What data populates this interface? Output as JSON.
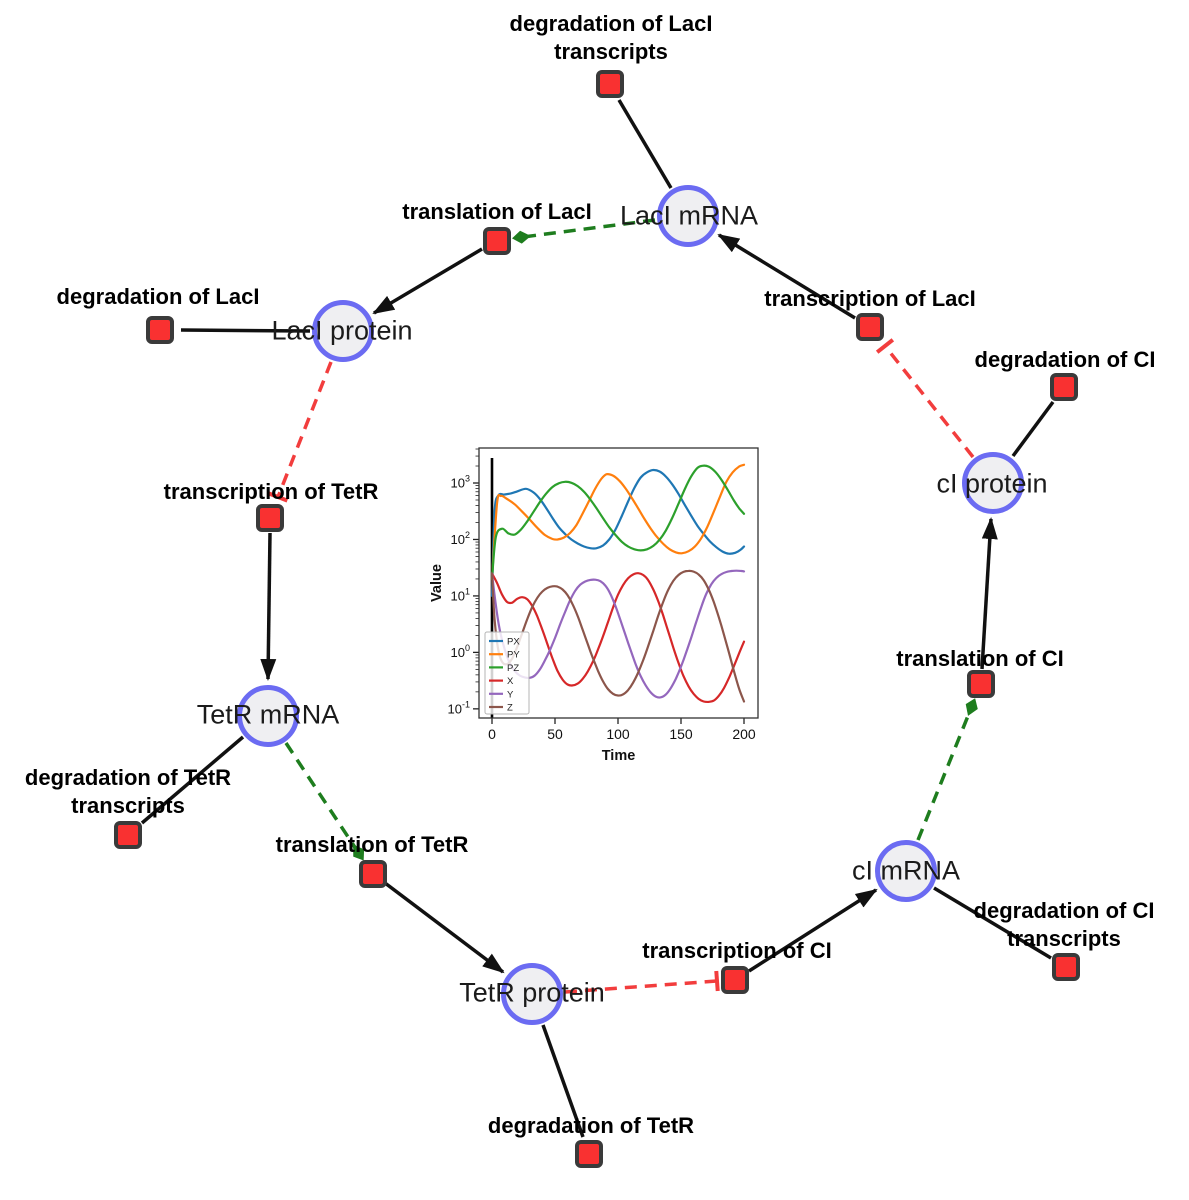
{
  "colors": {
    "species_fill": "#efeff2",
    "species_stroke": "#6b6bf2",
    "reaction_fill": "#f93131",
    "reaction_stroke": "#3a3a3a",
    "edge": "#111111",
    "catalysis": "#1e7d1e",
    "inhibition": "#f23d3d"
  },
  "network": {
    "species": [
      {
        "id": "laci-mrna",
        "label": "LacI mRNA"
      },
      {
        "id": "laci-protein",
        "label": "LacI protein"
      },
      {
        "id": "tetr-mrna",
        "label": "TetR mRNA"
      },
      {
        "id": "tetr-protein",
        "label": "TetR protein"
      },
      {
        "id": "ci-mrna",
        "label": "cI mRNA"
      },
      {
        "id": "ci-protein",
        "label": "cI protein"
      }
    ],
    "reactions": [
      {
        "id": "degradation-of-laci-transcripts",
        "lines": [
          "degradation of LacI",
          "transcripts"
        ]
      },
      {
        "id": "translation-of-laci",
        "lines": [
          "translation of LacI"
        ]
      },
      {
        "id": "transcription-of-laci",
        "lines": [
          "transcription of LacI"
        ]
      },
      {
        "id": "degradation-of-laci",
        "lines": [
          "degradation of LacI"
        ]
      },
      {
        "id": "transcription-of-tetr",
        "lines": [
          "transcription of TetR"
        ]
      },
      {
        "id": "degradation-of-tetr-transcripts",
        "lines": [
          "degradation of TetR",
          "transcripts"
        ]
      },
      {
        "id": "translation-of-tetr",
        "lines": [
          "translation of TetR"
        ]
      },
      {
        "id": "degradation-of-tetr",
        "lines": [
          "degradation of TetR"
        ]
      },
      {
        "id": "transcription-of-ci",
        "lines": [
          "transcription of CI"
        ]
      },
      {
        "id": "degradation-of-ci-transcripts",
        "lines": [
          "degradation of CI",
          "transcripts"
        ]
      },
      {
        "id": "translation-of-ci",
        "lines": [
          "translation of CI"
        ]
      },
      {
        "id": "degradation-of-ci",
        "lines": [
          "degradation of CI"
        ]
      }
    ]
  },
  "chart_data": {
    "type": "line",
    "title": "",
    "xlabel": "Time",
    "ylabel": "Value",
    "x_ticks": [
      0,
      50,
      100,
      150,
      200
    ],
    "y_scale": "log",
    "y_ticks": [
      "10^-1",
      "10^0",
      "10^1",
      "10^2",
      "10^3"
    ],
    "xlim": [
      -12,
      211
    ],
    "ylim": [
      0.07,
      4200
    ],
    "grid": false,
    "legend_position": "lower left",
    "annotations": {
      "vline_x": 0
    },
    "series": [
      {
        "name": "PX",
        "color": "#1f77b4",
        "points": [
          [
            0,
            10
          ],
          [
            2,
            300
          ],
          [
            5,
            600
          ],
          [
            10,
            625
          ],
          [
            15,
            655
          ],
          [
            20,
            710
          ],
          [
            27,
            790
          ],
          [
            33,
            680
          ],
          [
            38,
            520
          ],
          [
            43,
            360
          ],
          [
            48,
            240
          ],
          [
            53,
            165
          ],
          [
            58,
            125
          ],
          [
            63,
            100
          ],
          [
            68,
            85
          ],
          [
            73,
            75
          ],
          [
            78,
            70
          ],
          [
            83,
            70
          ],
          [
            88,
            78
          ],
          [
            93,
            100
          ],
          [
            98,
            150
          ],
          [
            103,
            260
          ],
          [
            108,
            470
          ],
          [
            113,
            820
          ],
          [
            118,
            1250
          ],
          [
            123,
            1550
          ],
          [
            128,
            1700
          ],
          [
            133,
            1600
          ],
          [
            138,
            1300
          ],
          [
            143,
            950
          ],
          [
            148,
            640
          ],
          [
            153,
            410
          ],
          [
            158,
            265
          ],
          [
            163,
            175
          ],
          [
            168,
            125
          ],
          [
            173,
            92
          ],
          [
            178,
            73
          ],
          [
            183,
            61
          ],
          [
            188,
            56
          ],
          [
            193,
            58
          ],
          [
            197,
            65
          ],
          [
            200,
            75
          ]
        ]
      },
      {
        "name": "PY",
        "color": "#ff7f0e",
        "points": [
          [
            0,
            20
          ],
          [
            4,
            430
          ],
          [
            7,
            590
          ],
          [
            12,
            520
          ],
          [
            18,
            420
          ],
          [
            24,
            310
          ],
          [
            30,
            225
          ],
          [
            36,
            160
          ],
          [
            42,
            120
          ],
          [
            48,
            102
          ],
          [
            52,
            100
          ],
          [
            57,
            108
          ],
          [
            62,
            130
          ],
          [
            67,
            180
          ],
          [
            72,
            290
          ],
          [
            77,
            480
          ],
          [
            82,
            800
          ],
          [
            87,
            1200
          ],
          [
            91,
            1430
          ],
          [
            96,
            1350
          ],
          [
            101,
            1100
          ],
          [
            106,
            800
          ],
          [
            111,
            540
          ],
          [
            116,
            355
          ],
          [
            121,
            230
          ],
          [
            126,
            155
          ],
          [
            131,
            110
          ],
          [
            136,
            83
          ],
          [
            141,
            67
          ],
          [
            146,
            59
          ],
          [
            151,
            57
          ],
          [
            156,
            62
          ],
          [
            161,
            75
          ],
          [
            166,
            105
          ],
          [
            171,
            170
          ],
          [
            176,
            310
          ],
          [
            181,
            580
          ],
          [
            186,
            1050
          ],
          [
            191,
            1550
          ],
          [
            196,
            1950
          ],
          [
            200,
            2100
          ]
        ]
      },
      {
        "name": "PZ",
        "color": "#2ca02c",
        "points": [
          [
            0,
            20
          ],
          [
            3,
            110
          ],
          [
            8,
            155
          ],
          [
            13,
            128
          ],
          [
            18,
            122
          ],
          [
            23,
            150
          ],
          [
            28,
            210
          ],
          [
            33,
            310
          ],
          [
            38,
            460
          ],
          [
            43,
            650
          ],
          [
            48,
            850
          ],
          [
            53,
            990
          ],
          [
            58,
            1050
          ],
          [
            63,
            1010
          ],
          [
            68,
            880
          ],
          [
            73,
            700
          ],
          [
            78,
            510
          ],
          [
            83,
            355
          ],
          [
            88,
            240
          ],
          [
            93,
            165
          ],
          [
            98,
            120
          ],
          [
            103,
            91
          ],
          [
            108,
            75
          ],
          [
            113,
            67
          ],
          [
            118,
            64
          ],
          [
            123,
            67
          ],
          [
            128,
            77
          ],
          [
            133,
            99
          ],
          [
            138,
            145
          ],
          [
            143,
            240
          ],
          [
            148,
            430
          ],
          [
            153,
            780
          ],
          [
            158,
            1300
          ],
          [
            163,
            1850
          ],
          [
            167,
            2020
          ],
          [
            172,
            1950
          ],
          [
            177,
            1600
          ],
          [
            182,
            1150
          ],
          [
            187,
            760
          ],
          [
            192,
            490
          ],
          [
            196,
            360
          ],
          [
            200,
            285
          ]
        ]
      },
      {
        "name": "X",
        "color": "#d62728",
        "points": [
          [
            0,
            25
          ],
          [
            4,
            17
          ],
          [
            8,
            10.5
          ],
          [
            12,
            7.8
          ],
          [
            16,
            7.6
          ],
          [
            20,
            8.9
          ],
          [
            24,
            9.5
          ],
          [
            28,
            8.7
          ],
          [
            32,
            6.6
          ],
          [
            36,
            4.3
          ],
          [
            40,
            2.5
          ],
          [
            44,
            1.4
          ],
          [
            48,
            0.78
          ],
          [
            52,
            0.47
          ],
          [
            56,
            0.33
          ],
          [
            60,
            0.27
          ],
          [
            64,
            0.26
          ],
          [
            68,
            0.28
          ],
          [
            72,
            0.34
          ],
          [
            76,
            0.46
          ],
          [
            80,
            0.68
          ],
          [
            84,
            1.1
          ],
          [
            88,
            1.9
          ],
          [
            92,
            3.4
          ],
          [
            96,
            6.2
          ],
          [
            100,
            10.5
          ],
          [
            104,
            15.5
          ],
          [
            108,
            20.5
          ],
          [
            112,
            24
          ],
          [
            116,
            25.3
          ],
          [
            120,
            23.5
          ],
          [
            124,
            19
          ],
          [
            128,
            13
          ],
          [
            132,
            8
          ],
          [
            136,
            4.4
          ],
          [
            140,
            2.3
          ],
          [
            144,
            1.2
          ],
          [
            148,
            0.65
          ],
          [
            152,
            0.38
          ],
          [
            156,
            0.25
          ],
          [
            160,
            0.185
          ],
          [
            164,
            0.15
          ],
          [
            168,
            0.135
          ],
          [
            172,
            0.133
          ],
          [
            176,
            0.14
          ],
          [
            180,
            0.17
          ],
          [
            184,
            0.23
          ],
          [
            188,
            0.35
          ],
          [
            192,
            0.57
          ],
          [
            196,
            0.95
          ],
          [
            200,
            1.55
          ]
        ]
      },
      {
        "name": "Y",
        "color": "#9467bd",
        "points": [
          [
            0,
            25
          ],
          [
            3,
            7
          ],
          [
            6,
            2.6
          ],
          [
            10,
            1.15
          ],
          [
            14,
            0.65
          ],
          [
            18,
            0.47
          ],
          [
            22,
            0.39
          ],
          [
            26,
            0.36
          ],
          [
            30,
            0.355
          ],
          [
            34,
            0.39
          ],
          [
            38,
            0.5
          ],
          [
            42,
            0.72
          ],
          [
            46,
            1.1
          ],
          [
            50,
            1.8
          ],
          [
            54,
            3.1
          ],
          [
            58,
            5.2
          ],
          [
            62,
            8.4
          ],
          [
            66,
            12.3
          ],
          [
            70,
            15.8
          ],
          [
            74,
            18
          ],
          [
            78,
            19.2
          ],
          [
            82,
            19.4
          ],
          [
            86,
            18.2
          ],
          [
            90,
            15.2
          ],
          [
            94,
            10.8
          ],
          [
            98,
            6.6
          ],
          [
            102,
            3.7
          ],
          [
            106,
            2
          ],
          [
            110,
            1.1
          ],
          [
            114,
            0.62
          ],
          [
            118,
            0.38
          ],
          [
            122,
            0.26
          ],
          [
            126,
            0.195
          ],
          [
            130,
            0.165
          ],
          [
            134,
            0.16
          ],
          [
            138,
            0.18
          ],
          [
            142,
            0.235
          ],
          [
            146,
            0.345
          ],
          [
            150,
            0.56
          ],
          [
            154,
            0.98
          ],
          [
            158,
            1.8
          ],
          [
            162,
            3.4
          ],
          [
            166,
            6.3
          ],
          [
            170,
            10.8
          ],
          [
            174,
            16
          ],
          [
            178,
            20.8
          ],
          [
            182,
            24.3
          ],
          [
            186,
            26.5
          ],
          [
            190,
            27.6
          ],
          [
            194,
            28
          ],
          [
            198,
            27.6
          ],
          [
            200,
            27.2
          ]
        ]
      },
      {
        "name": "Z",
        "color": "#8c564b",
        "points": [
          [
            0,
            25
          ],
          [
            2,
            4
          ],
          [
            5,
            1.1
          ],
          [
            8,
            0.68
          ],
          [
            12,
            0.62
          ],
          [
            16,
            0.78
          ],
          [
            20,
            1.25
          ],
          [
            24,
            2.2
          ],
          [
            28,
            3.9
          ],
          [
            32,
            6.4
          ],
          [
            36,
            9.3
          ],
          [
            40,
            12
          ],
          [
            44,
            13.9
          ],
          [
            48,
            14.8
          ],
          [
            52,
            14.6
          ],
          [
            56,
            13
          ],
          [
            60,
            10.3
          ],
          [
            64,
            7.1
          ],
          [
            68,
            4.4
          ],
          [
            72,
            2.5
          ],
          [
            76,
            1.4
          ],
          [
            80,
            0.8
          ],
          [
            84,
            0.48
          ],
          [
            88,
            0.31
          ],
          [
            92,
            0.225
          ],
          [
            96,
            0.185
          ],
          [
            100,
            0.172
          ],
          [
            104,
            0.18
          ],
          [
            108,
            0.215
          ],
          [
            112,
            0.29
          ],
          [
            116,
            0.44
          ],
          [
            120,
            0.73
          ],
          [
            124,
            1.3
          ],
          [
            128,
            2.4
          ],
          [
            132,
            4.5
          ],
          [
            136,
            8
          ],
          [
            140,
            13
          ],
          [
            144,
            18.6
          ],
          [
            148,
            23.5
          ],
          [
            152,
            26.6
          ],
          [
            156,
            27.8
          ],
          [
            160,
            27
          ],
          [
            164,
            24
          ],
          [
            168,
            19
          ],
          [
            172,
            13
          ],
          [
            176,
            7.8
          ],
          [
            180,
            4.2
          ],
          [
            184,
            2.1
          ],
          [
            188,
            1.0
          ],
          [
            192,
            0.47
          ],
          [
            196,
            0.23
          ],
          [
            200,
            0.135
          ]
        ]
      }
    ]
  }
}
